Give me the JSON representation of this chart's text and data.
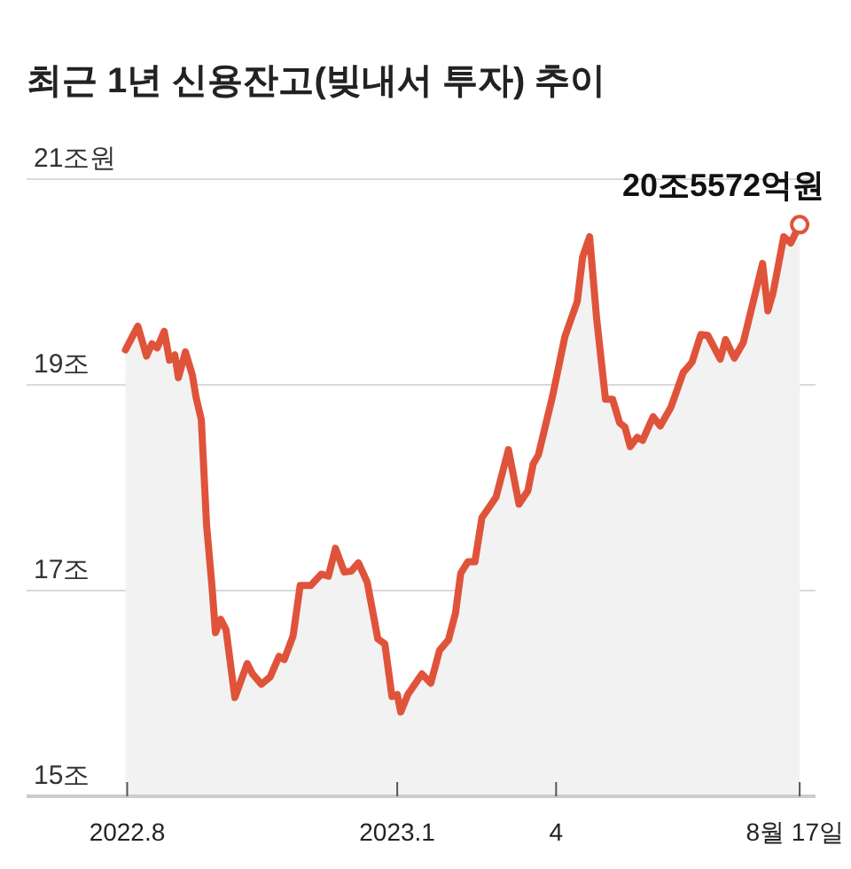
{
  "chart_data": {
    "type": "area",
    "title": "최근 1년 신용잔고(빚내서 투자) 추이",
    "x": [
      "2022-07-31",
      "2022-08-07",
      "2022-08-12",
      "2022-08-15",
      "2022-08-18",
      "2022-08-22",
      "2022-08-25",
      "2022-08-28",
      "2022-08-30",
      "2022-09-03",
      "2022-09-07",
      "2022-09-09",
      "2022-09-12",
      "2022-09-15",
      "2022-09-18",
      "2022-09-20",
      "2022-09-23",
      "2022-09-26",
      "2022-10-01",
      "2022-10-08",
      "2022-10-11",
      "2022-10-16",
      "2022-10-21",
      "2022-10-26",
      "2022-10-29",
      "2022-11-03",
      "2022-11-07",
      "2022-11-13",
      "2022-11-19",
      "2022-11-23",
      "2022-11-27",
      "2022-12-02",
      "2022-12-06",
      "2022-12-10",
      "2022-12-15",
      "2022-12-21",
      "2022-12-25",
      "2022-12-29",
      "2023-01-01",
      "2023-01-03",
      "2023-01-07",
      "2023-01-15",
      "2023-01-20",
      "2023-01-25",
      "2023-01-30",
      "2023-02-03",
      "2023-02-06",
      "2023-02-10",
      "2023-02-14",
      "2023-02-18",
      "2023-02-26",
      "2023-03-05",
      "2023-03-11",
      "2023-03-16",
      "2023-03-19",
      "2023-03-22",
      "2023-03-30",
      "2023-04-06",
      "2023-04-13",
      "2023-04-16",
      "2023-04-20",
      "2023-04-24",
      "2023-04-29",
      "2023-05-03",
      "2023-05-07",
      "2023-05-10",
      "2023-05-13",
      "2023-05-17",
      "2023-05-20",
      "2023-05-26",
      "2023-05-30",
      "2023-06-05",
      "2023-06-12",
      "2023-06-17",
      "2023-06-22",
      "2023-06-26",
      "2023-07-03",
      "2023-07-06",
      "2023-07-11",
      "2023-07-16",
      "2023-07-27",
      "2023-07-30",
      "2023-08-02",
      "2023-08-08",
      "2023-08-12",
      "2023-08-17"
    ],
    "series": [
      {
        "color": "#e0533b",
        "values": [
          19.34,
          19.57,
          19.28,
          19.4,
          19.36,
          19.52,
          19.24,
          19.29,
          19.07,
          19.32,
          19.09,
          18.88,
          18.66,
          17.63,
          17.05,
          16.59,
          16.72,
          16.62,
          15.96,
          16.29,
          16.19,
          16.09,
          16.16,
          16.36,
          16.33,
          16.56,
          17.05,
          17.05,
          17.16,
          17.14,
          17.41,
          17.18,
          17.19,
          17.27,
          17.08,
          16.53,
          16.48,
          15.97,
          15.99,
          15.82,
          15.99,
          16.19,
          16.1,
          16.42,
          16.52,
          16.78,
          17.17,
          17.28,
          17.28,
          17.71,
          17.91,
          18.37,
          17.84,
          17.97,
          18.23,
          18.32,
          18.89,
          19.47,
          19.81,
          20.24,
          20.44,
          19.64,
          18.86,
          18.86,
          18.63,
          18.59,
          18.4,
          18.49,
          18.46,
          18.69,
          18.6,
          18.78,
          19.12,
          19.22,
          19.49,
          19.48,
          19.25,
          19.44,
          19.26,
          19.41,
          20.18,
          19.72,
          19.9,
          20.44,
          20.38,
          20.5572
        ]
      }
    ],
    "xlim": [
      "2022-06-05",
      "2023-08-26"
    ],
    "xticks": [
      {
        "value": "2022-08-01",
        "label": "2022.8"
      },
      {
        "value": "2023-01-01",
        "label": "2023.1"
      },
      {
        "value": "2023-04-01",
        "label": "4"
      },
      {
        "value": "2023-08-17",
        "label": "8월 17일"
      }
    ],
    "ylim": [
      15,
      21
    ],
    "yticks": [
      {
        "value": 15,
        "label": "15조"
      },
      {
        "value": 17,
        "label": "17조"
      },
      {
        "value": 19,
        "label": "19조"
      },
      {
        "value": 21,
        "label": "21조원"
      }
    ],
    "grid": "y",
    "annotations": [
      {
        "text": "20조5572억원",
        "x": "2023-08-17",
        "y": 20.5572
      }
    ]
  }
}
